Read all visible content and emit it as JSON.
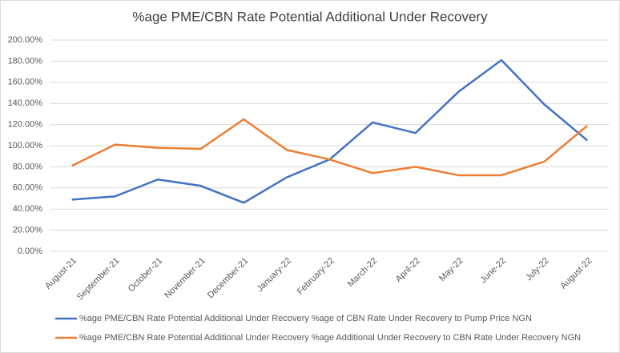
{
  "chart_data": {
    "type": "line",
    "title": "%age PME/CBN Rate Potential Additional Under Recovery",
    "categories": [
      "August-21",
      "September-21",
      "October-21",
      "November-21",
      "December-21",
      "January-22",
      "February-22",
      "March-22",
      "April-22",
      "May-22",
      "June-22",
      "July-22",
      "August-22"
    ],
    "series": [
      {
        "name": "%age PME/CBN Rate Potential Additional Under Recovery %age of CBN Rate Under Recovery to Pump Price NGN",
        "color": "#4472c4",
        "values": [
          49,
          52,
          68,
          62,
          46,
          70,
          87,
          122,
          112,
          151,
          181,
          139,
          105
        ]
      },
      {
        "name": "%age PME/CBN Rate Potential Additional Under Recovery %age Additional Under Recovery to CBN Rate Under Recovery NGN",
        "color": "#ed7d31",
        "values": [
          81,
          101,
          98,
          97,
          125,
          96,
          87,
          74,
          80,
          72,
          72,
          85,
          119
        ]
      }
    ],
    "ylim": [
      0,
      200
    ],
    "yticks": [
      {
        "value": 0,
        "label": "0.00%"
      },
      {
        "value": 20,
        "label": "20.00%"
      },
      {
        "value": 40,
        "label": "40.00%"
      },
      {
        "value": 60,
        "label": "60.00%"
      },
      {
        "value": 80,
        "label": "80.00%"
      },
      {
        "value": 100,
        "label": "100.00%"
      },
      {
        "value": 120,
        "label": "120.00%"
      },
      {
        "value": 140,
        "label": "140.00%"
      },
      {
        "value": 160,
        "label": "160.00%"
      },
      {
        "value": 180,
        "label": "180.00%"
      },
      {
        "value": 200,
        "label": "200.00%"
      }
    ],
    "grid": true,
    "legend": "bottom"
  }
}
